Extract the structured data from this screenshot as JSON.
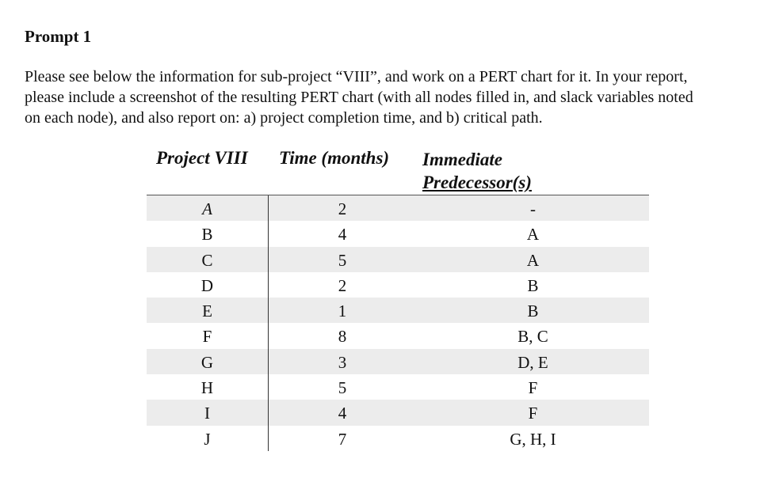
{
  "heading": "Prompt 1",
  "paragraph_lines": [
    "Please see below the information for sub-project “VIII”, and work on a PERT chart for it. In your report,",
    "please include a screenshot of the resulting PERT chart (with all nodes filled in, and slack variables noted",
    "on each node), and also report on: a) project completion time, and b) critical path."
  ],
  "table": {
    "headers": {
      "project": "Project VIII",
      "time": "Time (months)",
      "pred_line1": "Immediate",
      "pred_line2": "Predecessor(s)"
    },
    "rows": [
      {
        "activity": "A",
        "time": "2",
        "pred": "-"
      },
      {
        "activity": "B",
        "time": "4",
        "pred": "A"
      },
      {
        "activity": "C",
        "time": "5",
        "pred": "A"
      },
      {
        "activity": "D",
        "time": "2",
        "pred": "B"
      },
      {
        "activity": "E",
        "time": "1",
        "pred": "B"
      },
      {
        "activity": "F",
        "time": "8",
        "pred": "B, C"
      },
      {
        "activity": "G",
        "time": "3",
        "pred": "D, E"
      },
      {
        "activity": "H",
        "time": "5",
        "pred": "F"
      },
      {
        "activity": "I",
        "time": "4",
        "pred": "F"
      },
      {
        "activity": "J",
        "time": "7",
        "pred": "G, H, I"
      }
    ]
  }
}
